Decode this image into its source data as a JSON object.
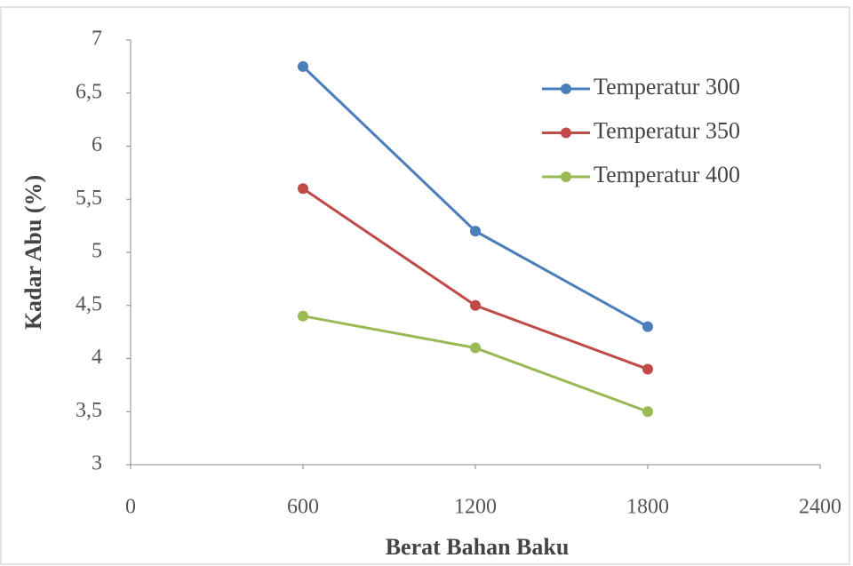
{
  "chart_data": {
    "type": "line",
    "xlabel": "Berat Bahan Baku",
    "ylabel": "Kadar Abu (%)",
    "x": [
      600,
      1200,
      1800
    ],
    "series": [
      {
        "name": "Temperatur 300",
        "color": "#4a7ebb",
        "values": [
          6.75,
          5.2,
          4.3
        ]
      },
      {
        "name": "Temperatur 350",
        "color": "#be4b48",
        "values": [
          5.6,
          4.5,
          3.9
        ]
      },
      {
        "name": "Temperatur 400",
        "color": "#98b954",
        "values": [
          4.4,
          4.1,
          3.5
        ]
      }
    ],
    "xlim": [
      0,
      2400
    ],
    "xticks": [
      0,
      600,
      1200,
      1800,
      2400
    ],
    "ylim": [
      3,
      7
    ],
    "yticks": [
      3,
      {
        "value": 3.5,
        "label": "3,5"
      },
      4,
      {
        "value": 4.5,
        "label": "4,5"
      },
      5,
      {
        "value": 5.5,
        "label": "5,5"
      },
      6,
      {
        "value": 6.5,
        "label": "6,5"
      },
      7
    ],
    "grid": false,
    "legend": "upper right"
  }
}
